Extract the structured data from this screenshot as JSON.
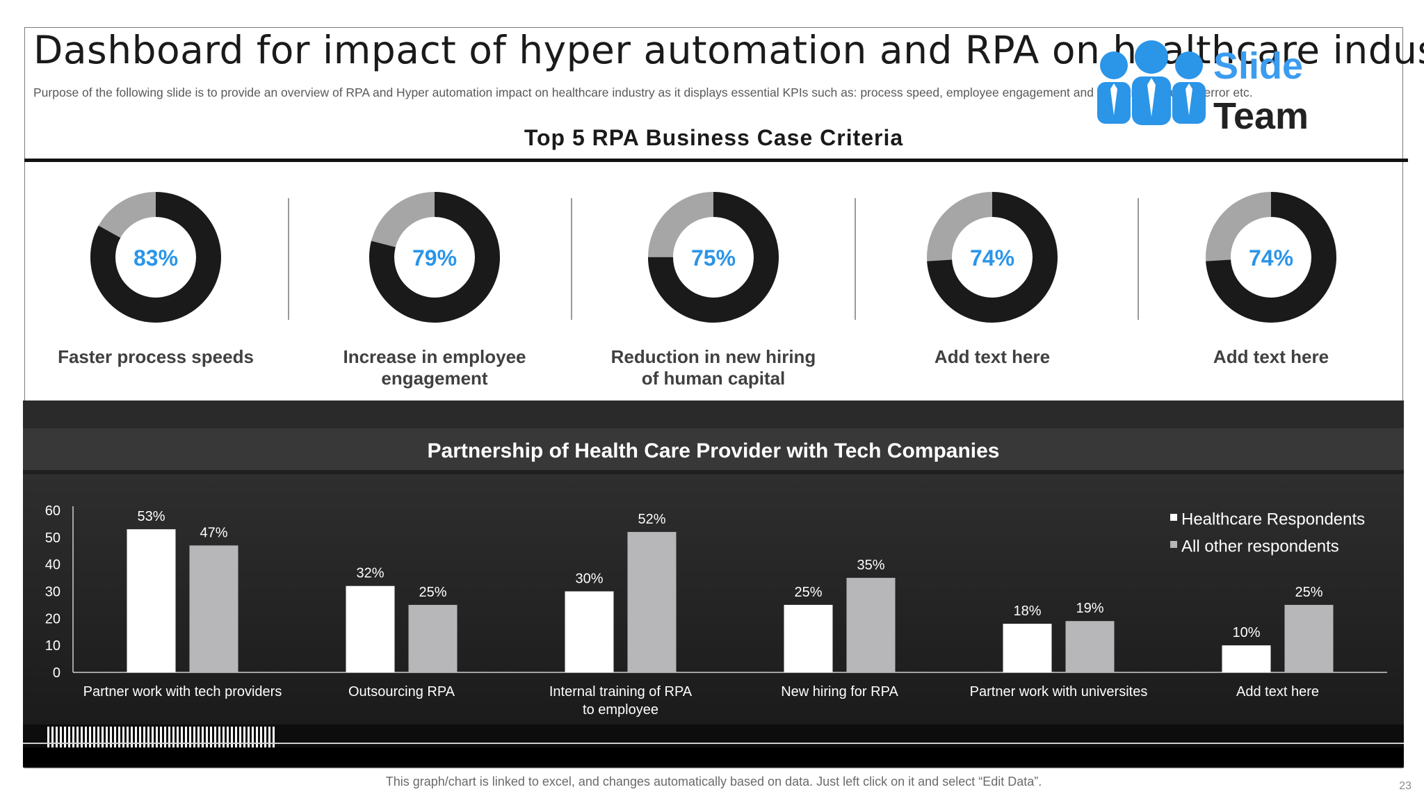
{
  "header": {
    "title": "Dashboard for impact of hyper automation and RPA on healthcare industry",
    "subtitle": "Purpose of the following slide is to provide an overview of RPA and Hyper automation impact on healthcare industry as it displays essential KPIs such as: process speed, employee engagement and reduction in human error etc."
  },
  "logo": {
    "line1": "Slide",
    "line2": "Team",
    "icon": "people-group-icon",
    "color": "#1f88e0"
  },
  "kpi_section": {
    "title": "Top 5 RPA Business Case Criteria",
    "items": [
      {
        "value": 83,
        "value_label": "83%",
        "label": "Faster process speeds"
      },
      {
        "value": 79,
        "value_label": "79%",
        "label": "Increase in employee engagement"
      },
      {
        "value": 75,
        "value_label": "75%",
        "label": "Reduction in new hiring of human capital"
      },
      {
        "value": 74,
        "value_label": "74%",
        "label": "Add text here"
      },
      {
        "value": 74,
        "value_label": "74%",
        "label": "Add text here"
      }
    ],
    "colors": {
      "filled": "#1a1a1a",
      "remainder": "#a6a6a6",
      "value_text": "#2b95e8"
    }
  },
  "partnership_section": {
    "title": "Partnership of Health Care Provider with Tech Companies"
  },
  "chart_data": {
    "type": "bar",
    "title": "Partnership of Health Care Provider with Tech Companies",
    "categories": [
      "Partner work with tech providers",
      "Outsourcing RPA",
      "Internal training of RPA to employee",
      "New hiring for RPA",
      "Partner work with universites",
      "Add text here"
    ],
    "series": [
      {
        "name": "Healthcare Respondents",
        "values": [
          53,
          32,
          30,
          25,
          18,
          10
        ],
        "labels": [
          "53%",
          "32%",
          "30%",
          "25%",
          "18%",
          "10%"
        ],
        "color": "#ffffff"
      },
      {
        "name": "All other respondents",
        "values": [
          47,
          25,
          52,
          35,
          19,
          25
        ],
        "labels": [
          "47%",
          "25%",
          "52%",
          "35%",
          "19%",
          "25%"
        ],
        "color": "#b7b7b9"
      }
    ],
    "ylim": [
      0,
      60
    ],
    "yticks": [
      "0",
      "10",
      "20",
      "30",
      "40",
      "50",
      "60"
    ],
    "xlabel": "",
    "ylabel": "",
    "grid": false,
    "legend": "top-right"
  },
  "footer": {
    "note": "This graph/chart is linked to excel, and changes automatically based on data. Just left click on it and select “Edit Data”.",
    "page": "23"
  }
}
